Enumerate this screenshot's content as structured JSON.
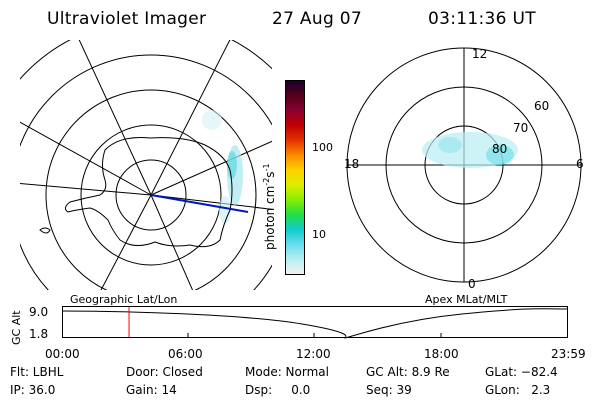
{
  "header": {
    "instrument": "Ultraviolet Imager",
    "date": "27 Aug 07",
    "time": "03:11:36 UT"
  },
  "colorbar": {
    "unit_label": "photon cm-2s-1",
    "ticks": [
      "100",
      "10"
    ],
    "colors": [
      "#1a0030",
      "#55001a",
      "#8a0030",
      "#c00000",
      "#e33300",
      "#ff8a00",
      "#ffd000",
      "#ddee00",
      "#88ee00",
      "#22dd44",
      "#11cccc",
      "#66ddee",
      "#b8eef0",
      "#f2f2f2"
    ]
  },
  "geo_panel": {
    "label": "Geographic Lat/Lon"
  },
  "apex_panel": {
    "label": "Apex MLat/MLT",
    "mlt_labels": [
      "12",
      "18",
      "6",
      "0"
    ],
    "lat_labels": [
      "60",
      "70",
      "80"
    ]
  },
  "timeline": {
    "ylabel": "GC Alt",
    "yticks": [
      "9.0",
      "1.8"
    ],
    "xticks": [
      "00:00",
      "06:00",
      "12:00",
      "18:00",
      "23:59"
    ],
    "marker_time": "03:11",
    "marker_color": "#ff0000"
  },
  "status": {
    "row1": {
      "flt": "Flt: LBHL",
      "door": "Door: Closed",
      "mode": "Mode: Normal",
      "gcalt": "GC Alt: 8.9 Re",
      "glat": "GLat: −82.4"
    },
    "row2": {
      "ip": "IP: 36.0",
      "gain": "Gain: 14",
      "dsp": "Dsp:     0.0",
      "seq": "Seq: 39",
      "glon": "GLon:   2.3"
    }
  }
}
